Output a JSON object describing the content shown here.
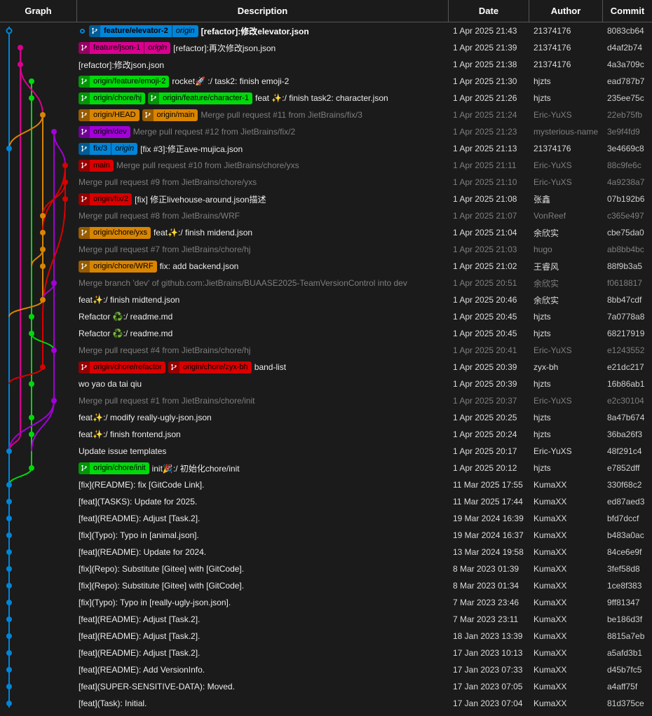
{
  "header": {
    "columns": [
      "Graph",
      "Description",
      "Date",
      "Author",
      "Commit"
    ]
  },
  "colors": {
    "blue": "#0085d9",
    "magenta": "#d9008f",
    "green": "#00d90a",
    "orange": "#d98500",
    "purple": "#a300d9",
    "red": "#d90000"
  },
  "rows": [
    {
      "head": true,
      "badges": [
        {
          "label": "feature/elevator-2",
          "color": "blue",
          "remote": "origin"
        }
      ],
      "desc": "[refactor]:修改elevator.json",
      "date": "1 Apr 2025 21:43",
      "author": "21374176",
      "commit": "8083cb64",
      "muted": false
    },
    {
      "badges": [
        {
          "label": "feature/json-1",
          "color": "magenta",
          "remote": "origin"
        }
      ],
      "desc": "[refactor]:再次修改json.json",
      "date": "1 Apr 2025 21:39",
      "author": "21374176",
      "commit": "d4af2b74",
      "muted": false
    },
    {
      "badges": [],
      "desc": "[refactor]:修改json.json",
      "date": "1 Apr 2025 21:38",
      "author": "21374176",
      "commit": "4a3a709c",
      "muted": false
    },
    {
      "badges": [
        {
          "label": "origin/feature/emoji-2",
          "color": "green"
        }
      ],
      "desc": "rocket🚀 :/ task2: finish emoji-2",
      "date": "1 Apr 2025 21:30",
      "author": "hjzts",
      "commit": "ead787b7",
      "muted": false
    },
    {
      "badges": [
        {
          "label": "origin/chore/hj",
          "color": "green"
        },
        {
          "label": "origin/feature/character-1",
          "color": "green"
        }
      ],
      "desc": "feat ✨:/ finish task2: character.json",
      "date": "1 Apr 2025 21:26",
      "author": "hjzts",
      "commit": "235ee75c",
      "muted": false
    },
    {
      "badges": [
        {
          "label": "origin/HEAD",
          "color": "orange"
        },
        {
          "label": "origin/main",
          "color": "orange"
        }
      ],
      "desc": "Merge pull request #11 from JietBrains/fix/3",
      "date": "1 Apr 2025 21:24",
      "author": "Eric-YuXS",
      "commit": "22eb75fb",
      "muted": true
    },
    {
      "badges": [
        {
          "label": "origin/dev",
          "color": "purple"
        }
      ],
      "desc": "Merge pull request #12 from JietBrains/fix/2",
      "date": "1 Apr 2025 21:23",
      "author": "mysterious-name",
      "commit": "3e9f4fd9",
      "muted": true
    },
    {
      "badges": [
        {
          "label": "fix/3",
          "color": "blue",
          "remote": "origin"
        }
      ],
      "desc": "[fix #3]:修正ave-mujica.json",
      "date": "1 Apr 2025 21:13",
      "author": "21374176",
      "commit": "3e4669c8",
      "muted": false
    },
    {
      "badges": [
        {
          "label": "main",
          "color": "red"
        }
      ],
      "desc": "Merge pull request #10 from JietBrains/chore/yxs",
      "date": "1 Apr 2025 21:11",
      "author": "Eric-YuXS",
      "commit": "88c9fe6c",
      "muted": true
    },
    {
      "badges": [],
      "desc": "Merge pull request #9 from JietBrains/chore/yxs",
      "date": "1 Apr 2025 21:10",
      "author": "Eric-YuXS",
      "commit": "4a9238a7",
      "muted": true
    },
    {
      "badges": [
        {
          "label": "origin/fix/2",
          "color": "red"
        }
      ],
      "desc": "[fix] 修正livehouse-around.json描述",
      "date": "1 Apr 2025 21:08",
      "author": "张鑫",
      "commit": "07b192b6",
      "muted": false
    },
    {
      "badges": [],
      "desc": "Merge pull request #8 from JietBrains/WRF",
      "date": "1 Apr 2025 21:07",
      "author": "VonReef",
      "commit": "c365e497",
      "muted": true
    },
    {
      "badges": [
        {
          "label": "origin/chore/yxs",
          "color": "orange"
        }
      ],
      "desc": "feat✨:/ finish midend.json",
      "date": "1 Apr 2025 21:04",
      "author": "余欣实",
      "commit": "cbe75da0",
      "muted": false
    },
    {
      "badges": [],
      "desc": "Merge pull request #7 from JietBrains/chore/hj",
      "date": "1 Apr 2025 21:03",
      "author": "hugo",
      "commit": "ab8bb4bc",
      "muted": true
    },
    {
      "badges": [
        {
          "label": "origin/chore/WRF",
          "color": "orange"
        }
      ],
      "desc": "fix: add backend.json",
      "date": "1 Apr 2025 21:02",
      "author": "王睿风",
      "commit": "88f9b3a5",
      "muted": false
    },
    {
      "badges": [],
      "desc": "Merge branch 'dev' of github.com:JietBrains/BUAASE2025-TeamVersionControl into dev",
      "date": "1 Apr 2025 20:51",
      "author": "余欣实",
      "commit": "f0618817",
      "muted": true
    },
    {
      "badges": [],
      "desc": "feat✨:/ finish midtend.json",
      "date": "1 Apr 2025 20:46",
      "author": "余欣实",
      "commit": "8bb47cdf",
      "muted": false
    },
    {
      "badges": [],
      "desc": "Refactor ♻️:/ readme.md",
      "date": "1 Apr 2025 20:45",
      "author": "hjzts",
      "commit": "7a0778a8",
      "muted": false
    },
    {
      "badges": [],
      "desc": "Refactor ♻️:/ readme.md",
      "date": "1 Apr 2025 20:45",
      "author": "hjzts",
      "commit": "68217919",
      "muted": false
    },
    {
      "badges": [],
      "desc": "Merge pull request #4 from JietBrains/chore/hj",
      "date": "1 Apr 2025 20:41",
      "author": "Eric-YuXS",
      "commit": "e1243552",
      "muted": true
    },
    {
      "badges": [
        {
          "label": "origin/chore/refactor",
          "color": "red"
        },
        {
          "label": "origin/chore/zyx-bh",
          "color": "red"
        }
      ],
      "desc": "band-list",
      "date": "1 Apr 2025 20:39",
      "author": "zyx-bh",
      "commit": "e21dc217",
      "muted": false
    },
    {
      "badges": [],
      "desc": "wo yao da tai qiu",
      "date": "1 Apr 2025 20:39",
      "author": "hjzts",
      "commit": "16b86ab1",
      "muted": false
    },
    {
      "badges": [],
      "desc": "Merge pull request #1 from JietBrains/chore/init",
      "date": "1 Apr 2025 20:37",
      "author": "Eric-YuXS",
      "commit": "e2c30104",
      "muted": true
    },
    {
      "badges": [],
      "desc": "feat✨:/ modify really-ugly-json.json",
      "date": "1 Apr 2025 20:25",
      "author": "hjzts",
      "commit": "8a47b674",
      "muted": false
    },
    {
      "badges": [],
      "desc": "feat✨:/ finish frontend.json",
      "date": "1 Apr 2025 20:24",
      "author": "hjzts",
      "commit": "36ba26f3",
      "muted": false
    },
    {
      "badges": [],
      "desc": "Update issue templates",
      "date": "1 Apr 2025 20:17",
      "author": "Eric-YuXS",
      "commit": "48f291c4",
      "muted": false
    },
    {
      "badges": [
        {
          "label": "origin/chore/init",
          "color": "green"
        }
      ],
      "desc": "init🎉:/ 初始化chore/init",
      "date": "1 Apr 2025 20:12",
      "author": "hjzts",
      "commit": "e7852dff",
      "muted": false
    },
    {
      "badges": [],
      "desc": "[fix](README): fix [GitCode Link].",
      "date": "11 Mar 2025 17:55",
      "author": "KumaXX",
      "commit": "330f68c2",
      "muted": false
    },
    {
      "badges": [],
      "desc": "[feat](TASKS): Update for 2025.",
      "date": "11 Mar 2025 17:44",
      "author": "KumaXX",
      "commit": "ed87aed3",
      "muted": false
    },
    {
      "badges": [],
      "desc": "[feat](README): Adjust [Task.2].",
      "date": "19 Mar 2024 16:39",
      "author": "KumaXX",
      "commit": "bfd7dccf",
      "muted": false
    },
    {
      "badges": [],
      "desc": "[fix](Typo): Typo in [animal.json].",
      "date": "19 Mar 2024 16:37",
      "author": "KumaXX",
      "commit": "b483a0ac",
      "muted": false
    },
    {
      "badges": [],
      "desc": "[feat](README): Update for 2024.",
      "date": "13 Mar 2024 19:58",
      "author": "KumaXX",
      "commit": "84ce6e9f",
      "muted": false
    },
    {
      "badges": [],
      "desc": "[fix](Repo): Substitute [Gitee] with [GitCode].",
      "date": "8 Mar 2023 01:39",
      "author": "KumaXX",
      "commit": "3fef58d8",
      "muted": false
    },
    {
      "badges": [],
      "desc": "[fix](Repo): Substitute [Gitee] with [GitCode].",
      "date": "8 Mar 2023 01:34",
      "author": "KumaXX",
      "commit": "1ce8f383",
      "muted": false
    },
    {
      "badges": [],
      "desc": "[fix](Typo): Typo in [really-ugly-json.json].",
      "date": "7 Mar 2023 23:46",
      "author": "KumaXX",
      "commit": "9ff81347",
      "muted": false
    },
    {
      "badges": [],
      "desc": "[feat](README): Adjust [Task.2].",
      "date": "7 Mar 2023 23:11",
      "author": "KumaXX",
      "commit": "be186d3f",
      "muted": false
    },
    {
      "badges": [],
      "desc": "[feat](README): Adjust [Task.2].",
      "date": "18 Jan 2023 13:39",
      "author": "KumaXX",
      "commit": "8815a7eb",
      "muted": false
    },
    {
      "badges": [],
      "desc": "[feat](README): Adjust [Task.2].",
      "date": "17 Jan 2023 10:13",
      "author": "KumaXX",
      "commit": "a5afd3b1",
      "muted": false
    },
    {
      "badges": [],
      "desc": "[feat](README): Add VersionInfo.",
      "date": "17 Jan 2023 07:33",
      "author": "KumaXX",
      "commit": "d45b7fc5",
      "muted": false
    },
    {
      "badges": [],
      "desc": "[feat](SUPER-SENSITIVE-DATA): Moved.",
      "date": "17 Jan 2023 07:05",
      "author": "KumaXX",
      "commit": "a4aff75f",
      "muted": false
    },
    {
      "badges": [],
      "desc": "[feat](Task): Initial.",
      "date": "17 Jan 2023 07:04",
      "author": "KumaXX",
      "commit": "81d375ce",
      "muted": false
    }
  ],
  "graph": {
    "lines": [
      [
        "blue",
        13,
        38,
        1010
      ],
      [
        "magenta",
        29,
        68,
        620
      ],
      [
        "green",
        45,
        116,
        668
      ],
      [
        "orange",
        61,
        164,
        428
      ],
      [
        "purple",
        77,
        188,
        572
      ],
      [
        "red",
        93,
        236,
        284
      ],
      [
        "red",
        61,
        452,
        524
      ]
    ],
    "curves": [
      [
        "magenta",
        29,
        92,
        61,
        164
      ],
      [
        "orange",
        61,
        164,
        13,
        212
      ],
      [
        "purple",
        77,
        188,
        93,
        236
      ],
      [
        "red",
        93,
        236,
        61,
        332
      ],
      [
        "red",
        93,
        260,
        61,
        308
      ],
      [
        "red",
        93,
        284,
        61,
        452
      ],
      [
        "orange",
        61,
        356,
        45,
        380
      ],
      [
        "purple",
        77,
        404,
        61,
        428
      ],
      [
        "orange",
        61,
        428,
        13,
        452
      ],
      [
        "green",
        45,
        476,
        77,
        500
      ],
      [
        "red",
        61,
        524,
        13,
        548
      ],
      [
        "purple",
        77,
        572,
        13,
        644
      ],
      [
        "purple",
        77,
        572,
        45,
        644
      ],
      [
        "magenta",
        29,
        620,
        13,
        644
      ],
      [
        "green",
        45,
        668,
        13,
        692
      ]
    ],
    "dots": [
      [
        "blue",
        13,
        44,
        "ring"
      ],
      [
        "magenta",
        29,
        68
      ],
      [
        "magenta",
        29,
        92
      ],
      [
        "green",
        45,
        116
      ],
      [
        "green",
        45,
        140
      ],
      [
        "orange",
        61,
        164
      ],
      [
        "purple",
        77,
        188
      ],
      [
        "blue",
        13,
        212
      ],
      [
        "red",
        93,
        236
      ],
      [
        "red",
        93,
        260
      ],
      [
        "red",
        93,
        284
      ],
      [
        "orange",
        61,
        308
      ],
      [
        "orange",
        61,
        332
      ],
      [
        "orange",
        61,
        356
      ],
      [
        "orange",
        61,
        380
      ],
      [
        "purple",
        77,
        404
      ],
      [
        "orange",
        61,
        428
      ],
      [
        "green",
        45,
        452
      ],
      [
        "green",
        45,
        476
      ],
      [
        "purple",
        77,
        500
      ],
      [
        "red",
        61,
        524
      ],
      [
        "green",
        45,
        548
      ],
      [
        "purple",
        77,
        572
      ],
      [
        "green",
        45,
        596
      ],
      [
        "green",
        45,
        620
      ],
      [
        "blue",
        13,
        644
      ],
      [
        "green",
        45,
        668
      ],
      [
        "blue",
        13,
        692
      ],
      [
        "blue",
        13,
        716
      ],
      [
        "blue",
        13,
        740
      ],
      [
        "blue",
        13,
        764
      ],
      [
        "blue",
        13,
        788
      ],
      [
        "blue",
        13,
        812
      ],
      [
        "blue",
        13,
        836
      ],
      [
        "blue",
        13,
        860
      ],
      [
        "blue",
        13,
        884
      ],
      [
        "blue",
        13,
        908
      ],
      [
        "blue",
        13,
        932
      ],
      [
        "blue",
        13,
        956
      ],
      [
        "blue",
        13,
        980
      ],
      [
        "blue",
        13,
        1004
      ]
    ]
  }
}
